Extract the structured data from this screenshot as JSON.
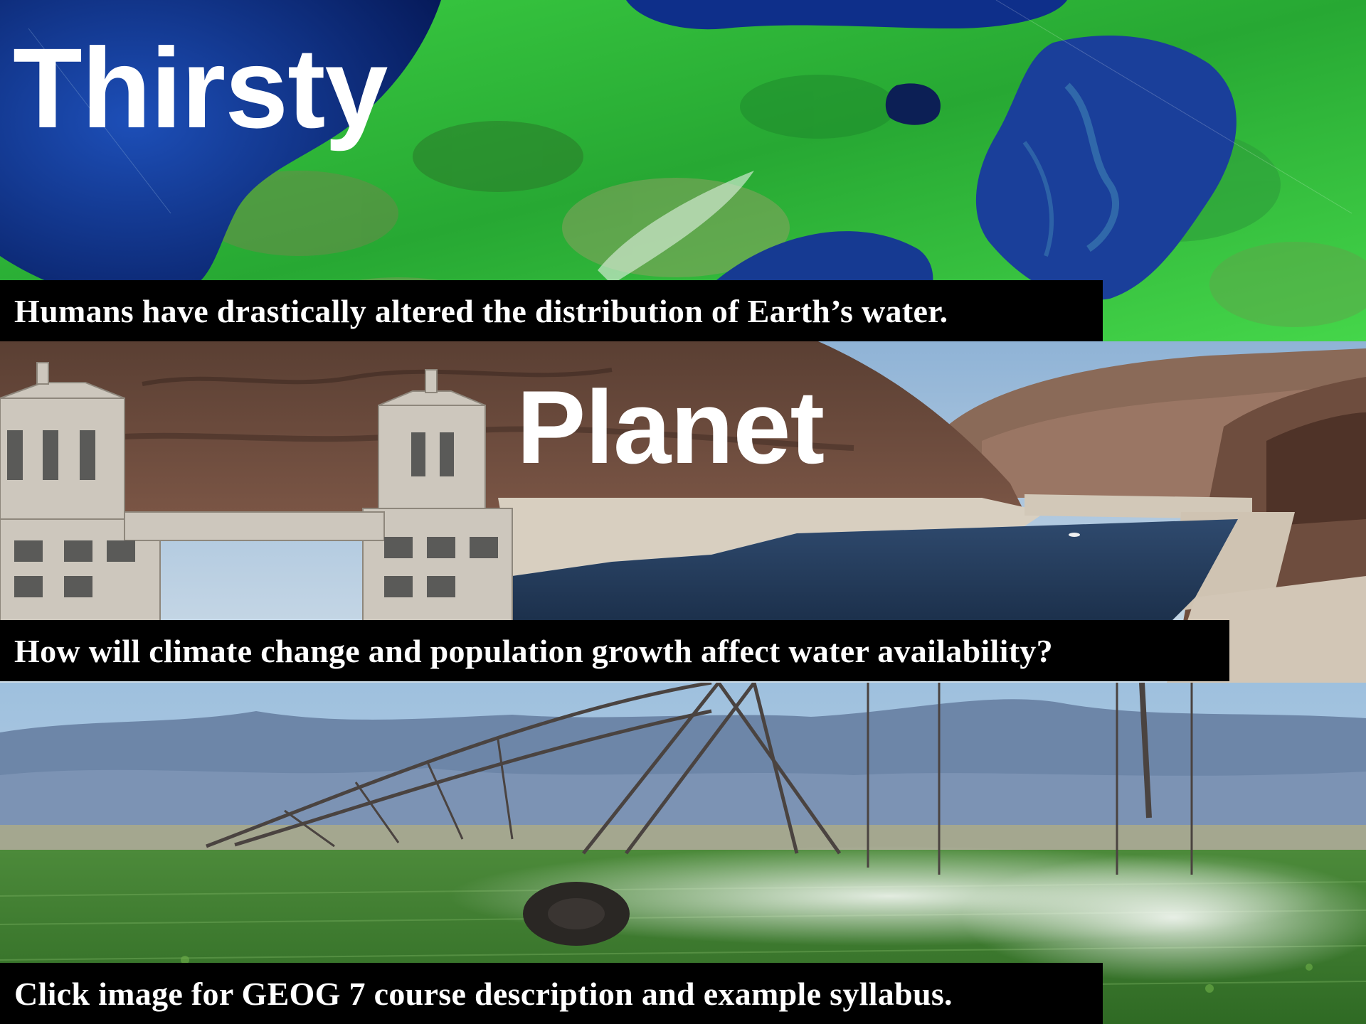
{
  "banner": {
    "title_word_1": "Thirsty",
    "title_word_2": "Planet",
    "captions": [
      "Humans have drastically altered the distribution of Earth’s water.",
      "How will climate change and population growth affect water availability?",
      "Click image for GEOG 7 course description and example syllabus."
    ]
  },
  "panels": [
    {
      "name": "satellite-image",
      "icon": "satellite-landscape"
    },
    {
      "name": "dam-reservoir-image",
      "icon": "dam-reservoir"
    },
    {
      "name": "center-pivot-irrigation-image",
      "icon": "irrigation-sprinkler"
    }
  ],
  "colors": {
    "caption_bar": "#000000",
    "text": "#ffffff",
    "water_deep": "#0b2a7a",
    "vegetation": "#2fc83a",
    "canyon_rock": "#6b4a3a",
    "sky": "#a9c6e0",
    "crop_field": "#3c7a2a"
  }
}
